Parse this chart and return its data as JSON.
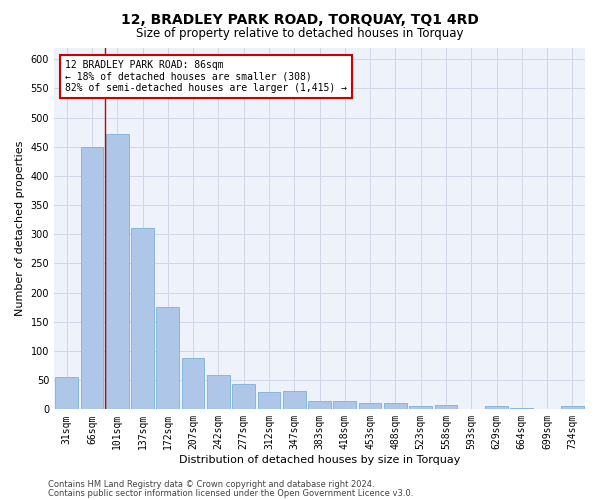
{
  "title": "12, BRADLEY PARK ROAD, TORQUAY, TQ1 4RD",
  "subtitle": "Size of property relative to detached houses in Torquay",
  "xlabel": "Distribution of detached houses by size in Torquay",
  "ylabel": "Number of detached properties",
  "categories": [
    "31sqm",
    "66sqm",
    "101sqm",
    "137sqm",
    "172sqm",
    "207sqm",
    "242sqm",
    "277sqm",
    "312sqm",
    "347sqm",
    "383sqm",
    "418sqm",
    "453sqm",
    "488sqm",
    "523sqm",
    "558sqm",
    "593sqm",
    "629sqm",
    "664sqm",
    "699sqm",
    "734sqm"
  ],
  "values": [
    55,
    450,
    472,
    311,
    176,
    88,
    58,
    43,
    30,
    32,
    15,
    15,
    10,
    10,
    6,
    8,
    0,
    5,
    3,
    0,
    5
  ],
  "bar_color": "#aec6e8",
  "bar_edge_color": "#6aaad4",
  "annotation_text": "12 BRADLEY PARK ROAD: 86sqm\n← 18% of detached houses are smaller (308)\n82% of semi-detached houses are larger (1,415) →",
  "annotation_box_color": "#ffffff",
  "annotation_box_edge": "#cc0000",
  "ylim": [
    0,
    620
  ],
  "yticks": [
    0,
    50,
    100,
    150,
    200,
    250,
    300,
    350,
    400,
    450,
    500,
    550,
    600
  ],
  "grid_color": "#d0d8e8",
  "bg_color": "#eef2fa",
  "footer1": "Contains HM Land Registry data © Crown copyright and database right 2024.",
  "footer2": "Contains public sector information licensed under the Open Government Licence v3.0.",
  "title_fontsize": 10,
  "subtitle_fontsize": 8.5,
  "xlabel_fontsize": 8,
  "ylabel_fontsize": 8,
  "tick_fontsize": 7,
  "annot_fontsize": 7,
  "footer_fontsize": 6
}
